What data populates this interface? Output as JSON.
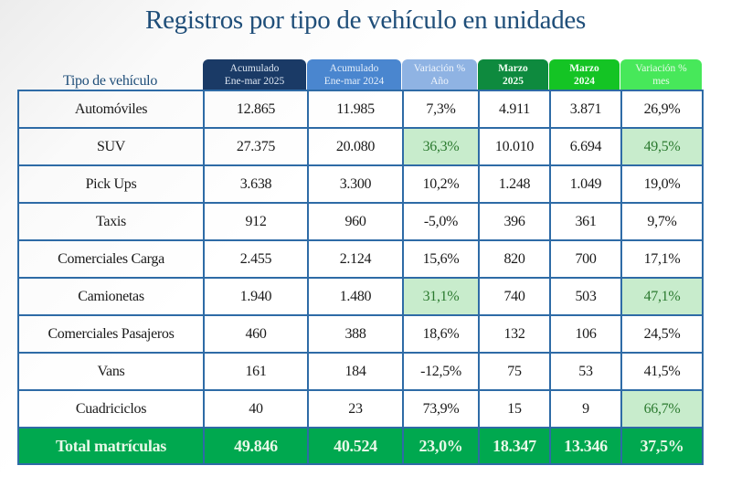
{
  "title": "Registros por tipo de vehículo en unidades",
  "row_header_label": "Tipo de vehículo",
  "colors": {
    "title": "#1f4e79",
    "h_acum_2025": "#1a3a66",
    "h_acum_2024": "#4a86cf",
    "h_var_ano": "#8fb3e3",
    "h_marzo_2025": "#0e8a3e",
    "h_marzo_2024": "#14c424",
    "h_var_mes": "#47e85a",
    "highlight": "#c8eccc",
    "total_row": "#00a84f",
    "grid_border": "#2e6ba6"
  },
  "columns": [
    {
      "line1": "Acumulado",
      "line2": "Ene-mar 2025"
    },
    {
      "line1": "Acumulado",
      "line2": "Ene-mar 2024"
    },
    {
      "line1": "Variación %",
      "line2": "Año"
    },
    {
      "line1": "Marzo",
      "line2": "2025"
    },
    {
      "line1": "Marzo",
      "line2": "2024"
    },
    {
      "line1": "Variación %",
      "line2": "mes"
    }
  ],
  "rows": [
    {
      "tipo": "Automóviles",
      "acum_2025": "12.865",
      "acum_2024": "11.985",
      "var_ano": "7,3%",
      "marzo_2025": "4.911",
      "marzo_2024": "3.871",
      "var_mes": "26,9%"
    },
    {
      "tipo": "SUV",
      "acum_2025": "27.375",
      "acum_2024": "20.080",
      "var_ano": "36,3%",
      "marzo_2025": "10.010",
      "marzo_2024": "6.694",
      "var_mes": "49,5%"
    },
    {
      "tipo": "Pick Ups",
      "acum_2025": "3.638",
      "acum_2024": "3.300",
      "var_ano": "10,2%",
      "marzo_2025": "1.248",
      "marzo_2024": "1.049",
      "var_mes": "19,0%"
    },
    {
      "tipo": "Taxis",
      "acum_2025": "912",
      "acum_2024": "960",
      "var_ano": "-5,0%",
      "marzo_2025": "396",
      "marzo_2024": "361",
      "var_mes": "9,7%"
    },
    {
      "tipo": "Comerciales Carga",
      "acum_2025": "2.455",
      "acum_2024": "2.124",
      "var_ano": "15,6%",
      "marzo_2025": "820",
      "marzo_2024": "700",
      "var_mes": "17,1%"
    },
    {
      "tipo": "Camionetas",
      "acum_2025": "1.940",
      "acum_2024": "1.480",
      "var_ano": "31,1%",
      "marzo_2025": "740",
      "marzo_2024": "503",
      "var_mes": "47,1%"
    },
    {
      "tipo": "Comerciales Pasajeros",
      "acum_2025": "460",
      "acum_2024": "388",
      "var_ano": "18,6%",
      "marzo_2025": "132",
      "marzo_2024": "106",
      "var_mes": "24,5%"
    },
    {
      "tipo": "Vans",
      "acum_2025": "161",
      "acum_2024": "184",
      "var_ano": "-12,5%",
      "marzo_2025": "75",
      "marzo_2024": "53",
      "var_mes": "41,5%"
    },
    {
      "tipo": "Cuadriciclos",
      "acum_2025": "40",
      "acum_2024": "23",
      "var_ano": "73,9%",
      "marzo_2025": "15",
      "marzo_2024": "9",
      "var_mes": "66,7%"
    }
  ],
  "highlighted_cells": [
    {
      "row": 1,
      "col": "var_ano"
    },
    {
      "row": 1,
      "col": "var_mes"
    },
    {
      "row": 5,
      "col": "var_ano"
    },
    {
      "row": 5,
      "col": "var_mes"
    },
    {
      "row": 8,
      "col": "var_mes"
    }
  ],
  "total": {
    "tipo": "Total matrículas",
    "acum_2025": "49.846",
    "acum_2024": "40.524",
    "var_ano": "23,0%",
    "marzo_2025": "18.347",
    "marzo_2024": "13.346",
    "var_mes": "37,5%"
  }
}
